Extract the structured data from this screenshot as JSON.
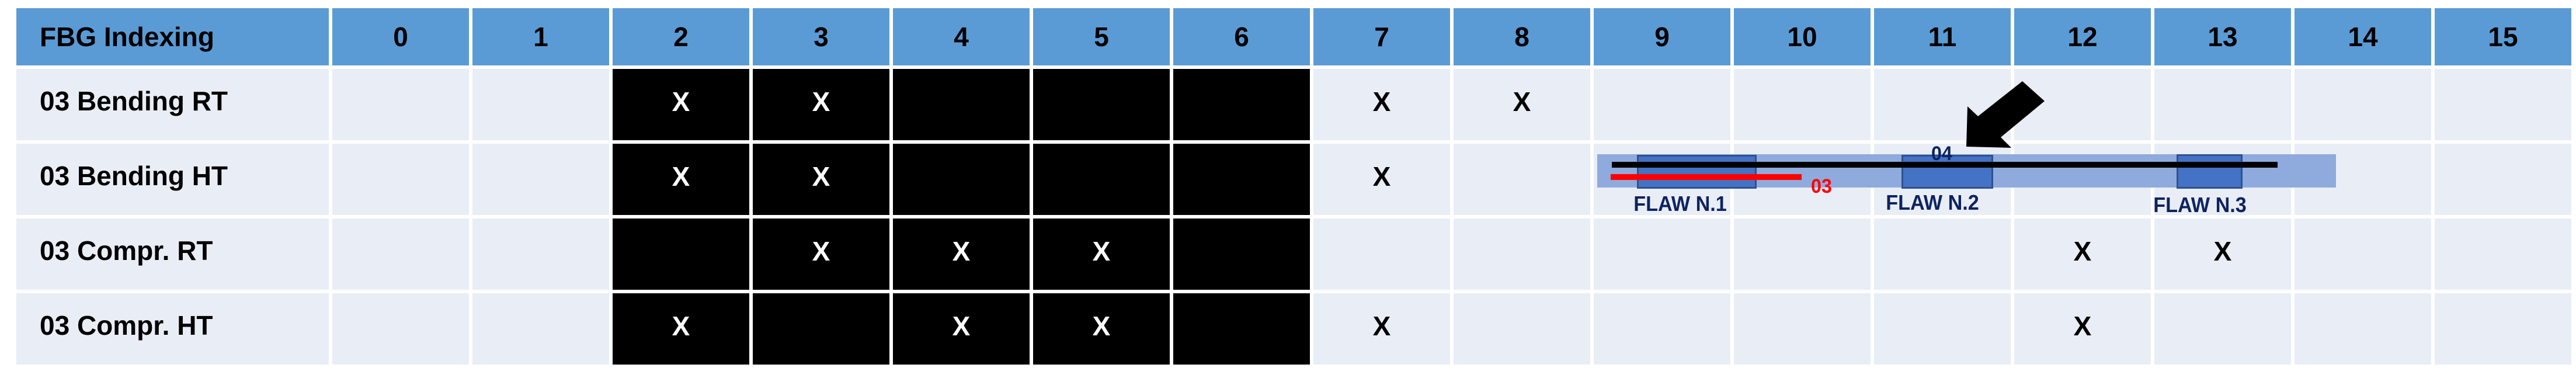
{
  "table": {
    "header_label": "FBG Indexing",
    "columns": [
      "0",
      "1",
      "2",
      "3",
      "4",
      "5",
      "6",
      "7",
      "8",
      "9",
      "10",
      "11",
      "12",
      "13",
      "14",
      "15"
    ],
    "rows": [
      {
        "label": "03 Bending RT",
        "shaded": [
          2,
          3,
          4,
          5,
          6
        ],
        "marks": [
          2,
          3,
          7,
          8
        ]
      },
      {
        "label": "03 Bending HT",
        "shaded": [
          2,
          3,
          4,
          5,
          6
        ],
        "marks": [
          2,
          3,
          7
        ]
      },
      {
        "label": "03 Compr. RT",
        "shaded": [
          2,
          3,
          4,
          5,
          6
        ],
        "marks": [
          3,
          4,
          5,
          12,
          13
        ]
      },
      {
        "label": "03 Compr. HT",
        "shaded": [
          2,
          3,
          4,
          5,
          6
        ],
        "marks": [
          2,
          4,
          5,
          7,
          12
        ]
      }
    ],
    "mark_symbol": "X"
  },
  "diagram": {
    "flaws": [
      "FLAW N.1",
      "FLAW N.2",
      "FLAW N.3"
    ],
    "fiber_04_label": "04",
    "fiber_03_label": "03",
    "colors": {
      "header": "#5b9bd5",
      "cell": "#e9edf6",
      "shaded": "#000000",
      "band": "#8faadc",
      "flaw_box": "#4472c4",
      "fiber_04": "#000000",
      "fiber_03": "#ff0000",
      "label": "#0d2361"
    },
    "arrow_icon": "arrow-down-left"
  }
}
